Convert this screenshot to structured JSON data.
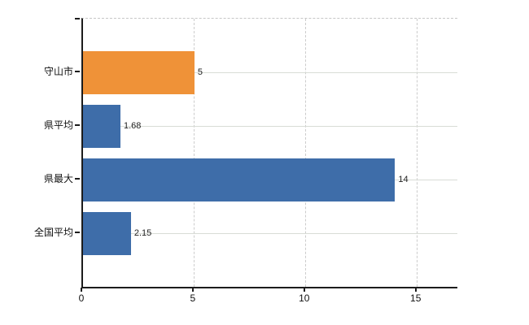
{
  "chart_data": {
    "type": "bar",
    "orientation": "horizontal",
    "title": "",
    "xlabel": "",
    "ylabel": "",
    "legend": "none",
    "grid": {
      "horizontal_style": "solid",
      "vertical_style": "dashed",
      "color": "#d6d6d6"
    },
    "background_color": "#ffffff",
    "axis_color": "#1c1c1c",
    "categories": [
      "守山市",
      "県平均",
      "県最大",
      "全国平均"
    ],
    "values": [
      5,
      1.68,
      14,
      2.15
    ],
    "value_labels": [
      "5",
      "1.68",
      "14",
      "2.15"
    ],
    "bar_colors": [
      "#ef9238",
      "#3e6da9",
      "#3e6da9",
      "#3e6da9"
    ],
    "accent_orange": "#ef9238",
    "accent_blue": "#3e6da9",
    "x_ticks": [
      0,
      5,
      10,
      15
    ],
    "x_tick_labels": [
      "0",
      "5",
      "10",
      "15"
    ],
    "xlim": [
      0,
      16.8
    ]
  }
}
